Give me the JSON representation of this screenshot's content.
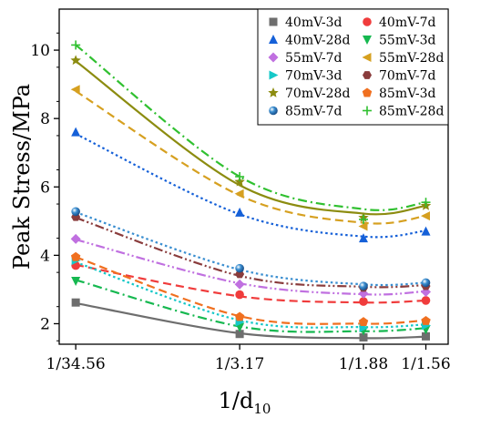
{
  "chart_data": {
    "type": "scatter",
    "title": "",
    "xlabel": "1/d",
    "xlabel_sub": "10",
    "ylabel": "Peak Stress/MPa",
    "x_categories": [
      "1/34.56",
      "1/3.17",
      "1/1.88",
      "1/1.56"
    ],
    "x": [
      0.0289,
      0.3155,
      0.5319,
      0.641
    ],
    "xlim": [
      0.0,
      0.68
    ],
    "ylim": [
      1.4,
      11.2
    ],
    "yticks": [
      2,
      4,
      6,
      8,
      10
    ],
    "grid": false,
    "legend_position": "top-right",
    "series": [
      {
        "name": "40mV-3d",
        "marker": "square",
        "color": "#6e6e6e",
        "dash": "solid",
        "values": [
          2.62,
          1.7,
          1.6,
          1.63
        ],
        "fit": [
          2.6,
          1.72,
          1.58,
          1.62
        ]
      },
      {
        "name": "40mV-7d",
        "marker": "circle",
        "color": "#f03c3c",
        "dash": "dashed",
        "values": [
          3.7,
          2.85,
          2.65,
          2.68
        ],
        "fit": [
          3.72,
          2.8,
          2.62,
          2.68
        ]
      },
      {
        "name": "40mV-28d",
        "marker": "triangle",
        "color": "#1560d8",
        "dash": "dotted",
        "values": [
          7.6,
          5.25,
          4.5,
          4.7
        ],
        "fit": [
          7.55,
          5.2,
          4.55,
          4.72
        ]
      },
      {
        "name": "55mV-3d",
        "marker": "tri-down",
        "color": "#16b850",
        "dash": "dash-dot",
        "values": [
          3.25,
          1.9,
          1.8,
          1.83
        ],
        "fit": [
          3.28,
          1.92,
          1.78,
          1.87
        ]
      },
      {
        "name": "55mV-7d",
        "marker": "diamond",
        "color": "#c070e0",
        "dash": "dash-dot-dot",
        "values": [
          4.48,
          3.15,
          2.88,
          2.93
        ],
        "fit": [
          4.46,
          3.18,
          2.86,
          2.95
        ]
      },
      {
        "name": "55mV-28d",
        "marker": "tri-left",
        "color": "#d6a020",
        "dash": "dashed",
        "values": [
          8.85,
          5.8,
          4.85,
          5.15
        ],
        "fit": [
          8.8,
          5.75,
          4.95,
          5.15
        ]
      },
      {
        "name": "70mV-3d",
        "marker": "tri-right",
        "color": "#16c8c8",
        "dash": "dotted",
        "values": [
          3.85,
          2.05,
          1.88,
          1.95
        ],
        "fit": [
          3.8,
          2.1,
          1.9,
          1.98
        ]
      },
      {
        "name": "70mV-7d",
        "marker": "hexagon",
        "color": "#8a3c3c",
        "dash": "dash-dot-dot",
        "values": [
          5.12,
          3.45,
          3.05,
          3.1
        ],
        "fit": [
          5.1,
          3.4,
          3.08,
          3.13
        ]
      },
      {
        "name": "70mV-28d",
        "marker": "star",
        "color": "#8c8c10",
        "dash": "solid",
        "values": [
          9.7,
          6.15,
          5.1,
          5.45
        ],
        "fit": [
          9.68,
          6.05,
          5.22,
          5.45
        ]
      },
      {
        "name": "85mV-3d",
        "marker": "pentagon",
        "color": "#f07020",
        "dash": "dashed",
        "values": [
          3.95,
          2.2,
          2.05,
          2.08
        ],
        "fit": [
          3.95,
          2.22,
          2.0,
          2.1
        ]
      },
      {
        "name": "85mV-7d",
        "marker": "ball",
        "color": "#3a8ed0",
        "dash": "dotted",
        "values": [
          5.28,
          3.62,
          3.1,
          3.2
        ],
        "fit": [
          5.26,
          3.58,
          3.15,
          3.2
        ]
      },
      {
        "name": "85mV-28d",
        "marker": "plus",
        "color": "#30c030",
        "dash": "dash-dot",
        "values": [
          10.15,
          6.3,
          5.05,
          5.55
        ],
        "fit": [
          10.15,
          6.3,
          5.35,
          5.55
        ]
      }
    ]
  }
}
